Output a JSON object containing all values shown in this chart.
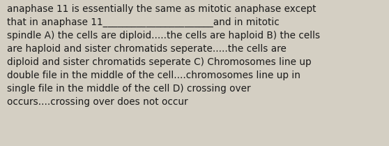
{
  "background_color": "#d4cfc3",
  "text_color": "#1a1a1a",
  "text": "anaphase 11 is essentially the same as mitotic anaphase except\nthat in anaphase 11_______________________and in mitotic\nspindle A) the cells are diploid.....the cells are haploid B) the cells\nare haploid and sister chromatids seperate.....the cells are\ndiploid and sister chromatids seperate C) Chromosomes line up\ndouble file in the middle of the cell....chromosomes line up in\nsingle file in the middle of the cell D) crossing over\noccurs....crossing over does not occur",
  "font_size": 9.8,
  "fig_width": 5.58,
  "fig_height": 2.09,
  "dpi": 100
}
